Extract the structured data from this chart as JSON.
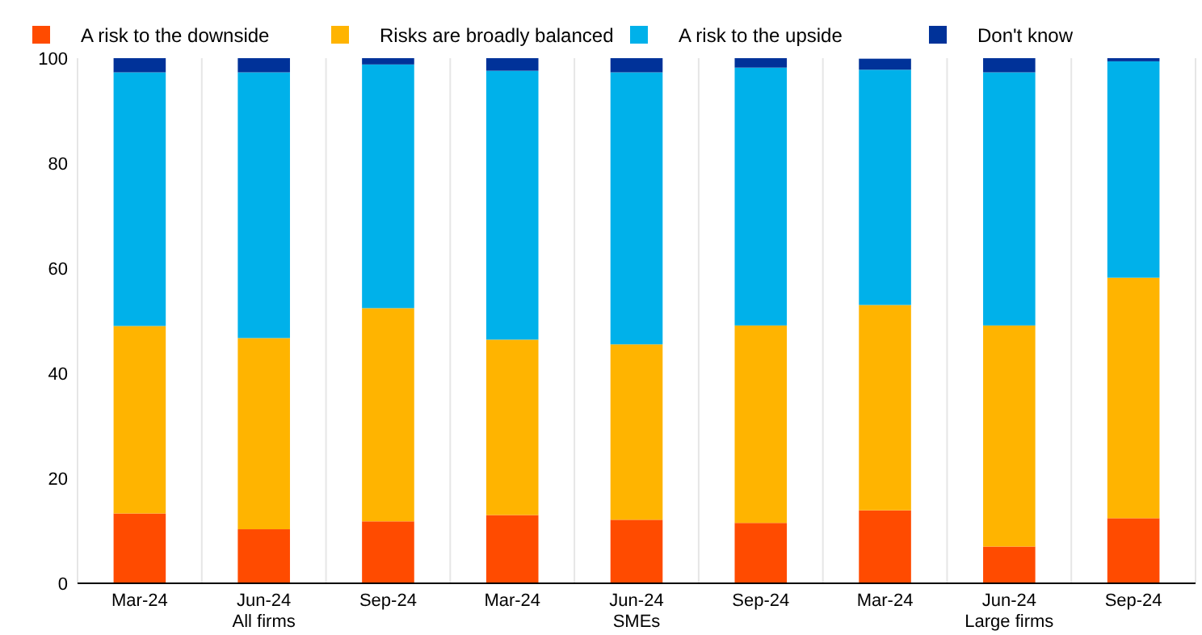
{
  "chart_data": {
    "type": "bar",
    "stacked": true,
    "categories": [
      "Mar-24",
      "Jun-24\nAll firms",
      "Sep-24",
      "Mar-24",
      "Jun-24\nSMEs",
      "Sep-24",
      "Mar-24",
      "Jun-24\nLarge firms",
      "Sep-24"
    ],
    "series": [
      {
        "name": "A risk to the downside",
        "color": "#ff4b00",
        "values": [
          13.3,
          10.3,
          11.8,
          13,
          12.1,
          11.5,
          13.9,
          7,
          12.4
        ]
      },
      {
        "name": "Risks are broadly balanced",
        "color": "#ffb400",
        "values": [
          35.7,
          36.4,
          40.6,
          33.4,
          33.4,
          37.6,
          39.1,
          42.1,
          45.8
        ]
      },
      {
        "name": "A risk to the upside",
        "color": "#00b1ea",
        "values": [
          48.3,
          50.6,
          46.4,
          51.2,
          51.8,
          49.1,
          44.8,
          48.2,
          41.2
        ]
      },
      {
        "name": "Don't know",
        "color": "#003299",
        "values": [
          2.7,
          2.7,
          1.2,
          2.4,
          2.7,
          1.8,
          2.1,
          2.7,
          0.6
        ]
      }
    ],
    "ylim": [
      0,
      100
    ],
    "yticks": [
      0,
      20,
      40,
      60,
      80,
      100
    ],
    "grid": "x",
    "legend": "top"
  }
}
